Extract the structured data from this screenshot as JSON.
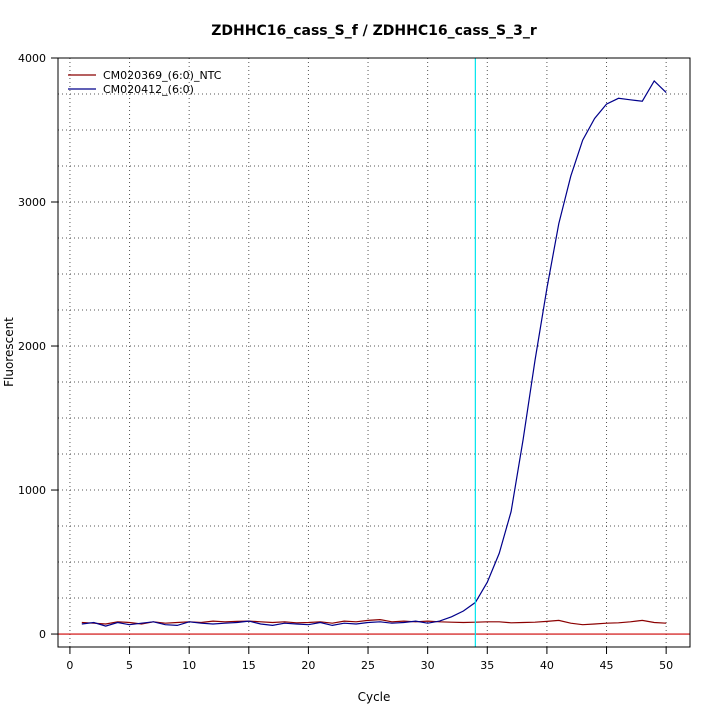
{
  "chart_data": {
    "type": "line",
    "title": "ZDHHC16_cass_S_f / ZDHHC16_cass_S_3_r",
    "xlabel": "Cycle",
    "ylabel": "Fluorescent",
    "xlim": [
      -1,
      52
    ],
    "ylim": [
      -90,
      4000
    ],
    "x_ticks": [
      0,
      5,
      10,
      15,
      20,
      25,
      30,
      35,
      40,
      45,
      50
    ],
    "y_ticks": [
      0,
      1000,
      2000,
      3000,
      4000
    ],
    "grid": true,
    "grid_y": [
      0,
      250,
      500,
      750,
      1000,
      1250,
      1500,
      1750,
      2000,
      2250,
      2500,
      2750,
      3000,
      3250,
      3500,
      3750,
      4000
    ],
    "legend_position": "top-left",
    "threshold_x": 34,
    "threshold_color": "#00E5EE",
    "baseline_y": 0,
    "baseline_color": "#CD0000",
    "x": [
      1,
      2,
      3,
      4,
      5,
      6,
      7,
      8,
      9,
      10,
      11,
      12,
      13,
      14,
      15,
      16,
      17,
      18,
      19,
      20,
      21,
      22,
      23,
      24,
      25,
      26,
      27,
      28,
      29,
      30,
      31,
      32,
      33,
      34,
      35,
      36,
      37,
      38,
      39,
      40,
      41,
      42,
      43,
      44,
      45,
      46,
      47,
      48,
      49,
      50
    ],
    "series": [
      {
        "name": "CM020369_(6:0)_NTC",
        "color": "#8B0000",
        "values": [
          80,
          75,
          70,
          85,
          80,
          70,
          85,
          75,
          80,
          85,
          80,
          90,
          85,
          88,
          90,
          85,
          80,
          85,
          78,
          80,
          85,
          75,
          90,
          85,
          95,
          100,
          85,
          90,
          85,
          90,
          85,
          82,
          80,
          82,
          85,
          85,
          78,
          80,
          82,
          88,
          95,
          75,
          65,
          70,
          75,
          78,
          85,
          95,
          80,
          75
        ]
      },
      {
        "name": "CM020412_(6:0)",
        "color": "#00008B",
        "values": [
          70,
          80,
          55,
          80,
          65,
          75,
          85,
          65,
          60,
          85,
          75,
          70,
          75,
          80,
          90,
          70,
          60,
          75,
          70,
          65,
          80,
          60,
          75,
          70,
          80,
          85,
          75,
          80,
          90,
          75,
          90,
          120,
          160,
          220,
          360,
          560,
          850,
          1350,
          1900,
          2400,
          2850,
          3180,
          3430,
          3580,
          3680,
          3720,
          3710,
          3700,
          3840,
          3760
        ]
      }
    ]
  }
}
